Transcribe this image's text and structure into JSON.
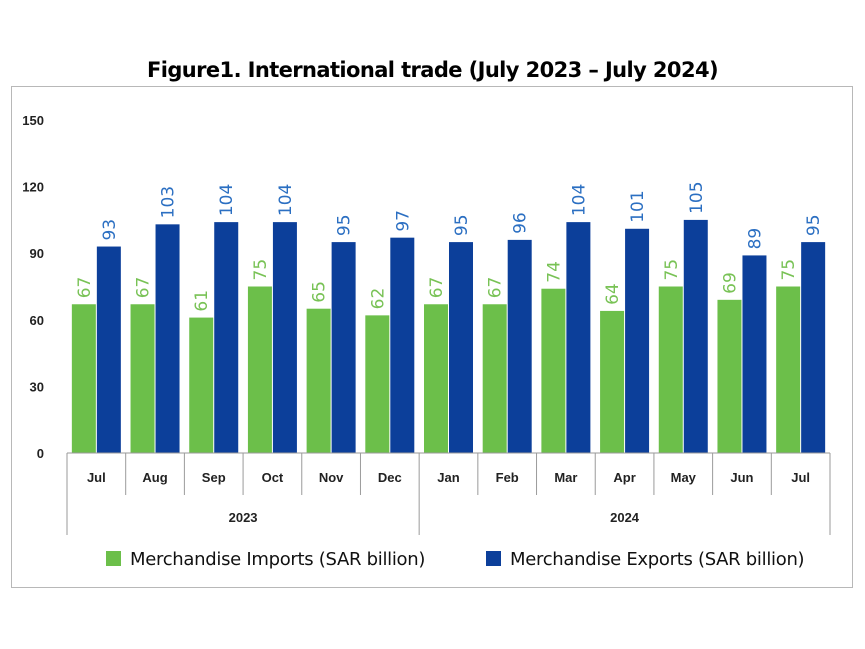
{
  "chart_data": {
    "type": "bar",
    "title": "Figure1. International trade (July 2023 – July 2024)",
    "categories": [
      "Jul",
      "Aug",
      "Sep",
      "Oct",
      "Nov",
      "Dec",
      "Jan",
      "Feb",
      "Mar",
      "Apr",
      "May",
      "Jun",
      "Jul"
    ],
    "groups": [
      {
        "label": "2023",
        "count": 6
      },
      {
        "label": "2024",
        "count": 7
      }
    ],
    "series": [
      {
        "name": "Merchandise Imports (SAR billion)",
        "color": "#6cbf4a",
        "label_color": "#78c255",
        "values": [
          67,
          67,
          61,
          75,
          65,
          62,
          67,
          67,
          74,
          64,
          75,
          69,
          75
        ]
      },
      {
        "name": "Merchandise Exports (SAR billion)",
        "color": "#0c3f9a",
        "label_color": "#2b6fc2",
        "values": [
          93,
          103,
          104,
          104,
          95,
          97,
          95,
          96,
          104,
          101,
          105,
          89,
          95
        ]
      }
    ],
    "yticks": [
      "0",
      "30",
      "60",
      "90",
      "120",
      "150"
    ],
    "ylim": [
      0,
      150
    ],
    "xlabel": "",
    "ylabel": "",
    "grid": false,
    "legend_position": "bottom"
  }
}
